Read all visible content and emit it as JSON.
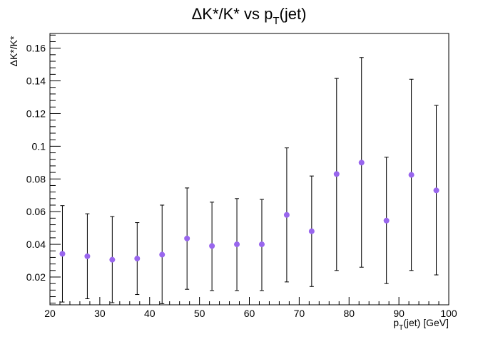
{
  "chart_data": {
    "type": "scatter",
    "title": {
      "main": "ΔK*/K* vs p",
      "sub": "T",
      "tail": "(jet)"
    },
    "xlabel": {
      "main": "p",
      "sub": "T",
      "tail": "(jet) [GeV]"
    },
    "ylabel": "ΔK*/K*",
    "xlim": [
      20,
      100
    ],
    "ylim": [
      0.003,
      0.169
    ],
    "x_ticks": [
      20,
      30,
      40,
      50,
      60,
      70,
      80,
      90,
      100
    ],
    "x_tick_labels": [
      "20",
      "30",
      "40",
      "50",
      "60",
      "70",
      "80",
      "90",
      "100"
    ],
    "y_ticks": [
      0.02,
      0.04,
      0.06,
      0.08,
      0.1,
      0.12,
      0.14,
      0.16
    ],
    "y_tick_labels": [
      "0.02",
      "0.04",
      "0.06",
      "0.08",
      "0.1",
      "0.12",
      "0.14",
      "0.16"
    ],
    "grid": false,
    "marker_color": "#9966ee",
    "points": [
      {
        "x": 22.5,
        "y": 0.0342,
        "ylow": 0.0047,
        "yhigh": 0.0637
      },
      {
        "x": 27.5,
        "y": 0.0327,
        "ylow": 0.0067,
        "yhigh": 0.0587
      },
      {
        "x": 32.5,
        "y": 0.0306,
        "ylow": 0.0043,
        "yhigh": 0.057
      },
      {
        "x": 37.5,
        "y": 0.0313,
        "ylow": 0.0093,
        "yhigh": 0.0533
      },
      {
        "x": 42.5,
        "y": 0.0337,
        "ylow": 0.0037,
        "yhigh": 0.064
      },
      {
        "x": 47.5,
        "y": 0.0436,
        "ylow": 0.0125,
        "yhigh": 0.0745
      },
      {
        "x": 52.5,
        "y": 0.039,
        "ylow": 0.0117,
        "yhigh": 0.0658
      },
      {
        "x": 57.5,
        "y": 0.04,
        "ylow": 0.0117,
        "yhigh": 0.068
      },
      {
        "x": 62.5,
        "y": 0.04,
        "ylow": 0.0117,
        "yhigh": 0.0675
      },
      {
        "x": 67.5,
        "y": 0.058,
        "ylow": 0.017,
        "yhigh": 0.099
      },
      {
        "x": 72.5,
        "y": 0.048,
        "ylow": 0.0142,
        "yhigh": 0.0818
      },
      {
        "x": 77.5,
        "y": 0.083,
        "ylow": 0.024,
        "yhigh": 0.1415
      },
      {
        "x": 82.5,
        "y": 0.09,
        "ylow": 0.026,
        "yhigh": 0.1543
      },
      {
        "x": 87.5,
        "y": 0.0545,
        "ylow": 0.016,
        "yhigh": 0.0933
      },
      {
        "x": 92.5,
        "y": 0.0825,
        "ylow": 0.024,
        "yhigh": 0.141
      },
      {
        "x": 97.5,
        "y": 0.073,
        "ylow": 0.0213,
        "yhigh": 0.125
      }
    ]
  }
}
